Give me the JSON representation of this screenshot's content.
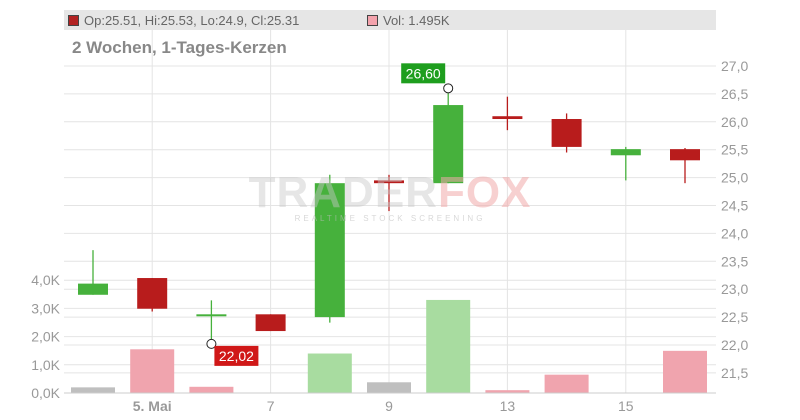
{
  "legend": {
    "ohlc_text": "Op:25.51, Hi:25.53, Lo:24.9, Cl:25.31",
    "vol_text": "Vol: 1.495K",
    "ohlc_color": "#b22222",
    "vol_color": "#f4a3ad"
  },
  "subtitle": "2 Wochen, 1-Tages-Kerzen",
  "watermark": {
    "brand_a": "TRADER",
    "brand_b": "FOX",
    "tagline": "REALTIME STOCK SCREENING"
  },
  "colors": {
    "up": "#46b13c",
    "down": "#b81c1c",
    "vol_up": "#a8dca0",
    "vol_down": "#f0a4ae",
    "vol_neutral": "#bfbfbf",
    "grid": "#e4e4e4",
    "axis_text": "#999999",
    "max_label_bg": "#1e9e1e",
    "min_label_bg": "#d01818"
  },
  "chart_data": {
    "type": "candlestick",
    "price_axis": {
      "ticks": [
        "27,0",
        "26,5",
        "26,0",
        "25,5",
        "25,0",
        "24,5",
        "24,0",
        "23,5",
        "23,0",
        "22,5",
        "22,0",
        "21,5"
      ],
      "tick_values": [
        27.0,
        26.5,
        26.0,
        25.5,
        25.0,
        24.5,
        24.0,
        23.5,
        23.0,
        22.5,
        22.0,
        21.5
      ],
      "range": [
        21.2,
        27.3
      ]
    },
    "volume_axis": {
      "ticks": [
        "4,0K",
        "3,0K",
        "2,0K",
        "1,0K",
        "0,0K"
      ],
      "tick_values": [
        4.0,
        3.0,
        2.0,
        1.0,
        0.0
      ],
      "range": [
        0,
        4.6
      ]
    },
    "x_ticks": [
      {
        "label": "5. Mai",
        "index": 1,
        "bold": true
      },
      {
        "label": "7",
        "index": 3,
        "bold": false
      },
      {
        "label": "9",
        "index": 5,
        "bold": false
      },
      {
        "label": "13",
        "index": 7,
        "bold": false
      },
      {
        "label": "15",
        "index": 9,
        "bold": false
      }
    ],
    "candles": [
      {
        "o": 22.9,
        "h": 23.7,
        "l": 22.9,
        "c": 23.1,
        "vol": 0.2,
        "vol_type": "neutral"
      },
      {
        "o": 23.2,
        "h": 23.2,
        "l": 22.6,
        "c": 22.65,
        "vol": 1.55,
        "vol_type": "down"
      },
      {
        "o": 22.55,
        "h": 22.8,
        "l": 22.02,
        "c": 22.55,
        "vol": 0.22,
        "vol_type": "down"
      },
      {
        "o": 22.55,
        "h": 22.55,
        "l": 22.25,
        "c": 22.25,
        "vol": 0.0,
        "vol_type": "down"
      },
      {
        "o": 22.5,
        "h": 25.05,
        "l": 22.4,
        "c": 24.9,
        "vol": 1.4,
        "vol_type": "up"
      },
      {
        "o": 24.95,
        "h": 25.05,
        "l": 24.4,
        "c": 24.9,
        "vol": 0.38,
        "vol_type": "neutral"
      },
      {
        "o": 24.9,
        "h": 26.6,
        "l": 24.9,
        "c": 26.3,
        "vol": 3.3,
        "vol_type": "up"
      },
      {
        "o": 26.1,
        "h": 26.45,
        "l": 25.85,
        "c": 26.05,
        "vol": 0.1,
        "vol_type": "down"
      },
      {
        "o": 26.05,
        "h": 26.15,
        "l": 25.45,
        "c": 25.55,
        "vol": 0.65,
        "vol_type": "down"
      },
      {
        "o": 25.4,
        "h": 25.55,
        "l": 24.95,
        "c": 25.51,
        "vol": 0.0,
        "vol_type": "up"
      },
      {
        "o": 25.51,
        "h": 25.53,
        "l": 24.9,
        "c": 25.31,
        "vol": 1.495,
        "vol_type": "down"
      }
    ],
    "annotations": [
      {
        "text": "26,60",
        "index": 6,
        "value": 26.6,
        "kind": "max"
      },
      {
        "text": "22,02",
        "index": 2,
        "value": 22.02,
        "kind": "min"
      }
    ]
  }
}
